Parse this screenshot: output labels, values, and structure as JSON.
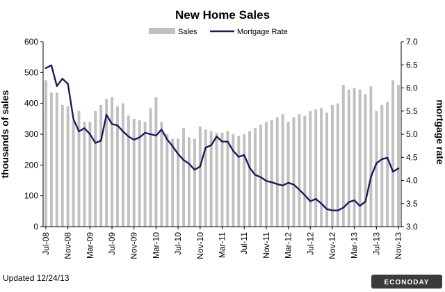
{
  "chart_data": {
    "type": "bar",
    "title": "New Home Sales",
    "ylabel": "thousands of sales",
    "y2label": "mortgage rate",
    "ylim": [
      0,
      600
    ],
    "y2lim": [
      3.0,
      7.0
    ],
    "yticks": [
      "0",
      "100",
      "200",
      "300",
      "400",
      "500",
      "600"
    ],
    "y2ticks": [
      "3.0",
      "3.5",
      "4.0",
      "4.5",
      "5.0",
      "5.5",
      "6.0",
      "6.5",
      "7.0"
    ],
    "x_tick_labels": [
      "Jul-08",
      "Nov-08",
      "Mar-09",
      "Jul-09",
      "Nov-09",
      "Mar-10",
      "Jul-10",
      "Nov-10",
      "Mar-11",
      "Jul-11",
      "Nov-11",
      "Mar-12",
      "Jul-12",
      "Nov-12",
      "Mar-13",
      "Jul-13",
      "Nov-13"
    ],
    "legend_position": "top-center",
    "grid": false,
    "series": [
      {
        "name": "Sales",
        "type": "bar",
        "axis": "left",
        "color": "#c0c0c0",
        "values": [
          475,
          435,
          435,
          395,
          390,
          345,
          375,
          340,
          340,
          375,
          395,
          415,
          420,
          390,
          400,
          360,
          350,
          345,
          340,
          385,
          420,
          340,
          300,
          285,
          285,
          320,
          290,
          285,
          325,
          315,
          310,
          305,
          305,
          310,
          300,
          295,
          300,
          310,
          320,
          330,
          340,
          345,
          355,
          365,
          340,
          355,
          365,
          360,
          375,
          380,
          385,
          370,
          395,
          400,
          460,
          445,
          450,
          445,
          430,
          455,
          375,
          395,
          405,
          475,
          460
        ]
      },
      {
        "name": "Mortgage Rate",
        "type": "line",
        "axis": "right",
        "color": "#1a1a5e",
        "values": [
          6.43,
          6.49,
          6.04,
          6.2,
          6.09,
          5.33,
          5.06,
          5.13,
          5.0,
          4.81,
          4.86,
          5.42,
          5.22,
          5.19,
          5.06,
          4.95,
          4.88,
          4.93,
          5.03,
          5.0,
          4.97,
          5.1,
          4.89,
          4.74,
          4.57,
          4.44,
          4.36,
          4.23,
          4.3,
          4.71,
          4.76,
          4.95,
          4.84,
          4.84,
          4.64,
          4.51,
          4.55,
          4.27,
          4.12,
          4.07,
          3.99,
          3.96,
          3.92,
          3.89,
          3.95,
          3.91,
          3.8,
          3.68,
          3.55,
          3.6,
          3.5,
          3.38,
          3.35,
          3.35,
          3.41,
          3.53,
          3.57,
          3.45,
          3.54,
          4.07,
          4.37,
          4.46,
          4.49,
          4.19,
          4.26
        ]
      }
    ]
  },
  "footer": {
    "updated": "Updated 12/24/13",
    "brand": "ECONODAY"
  }
}
